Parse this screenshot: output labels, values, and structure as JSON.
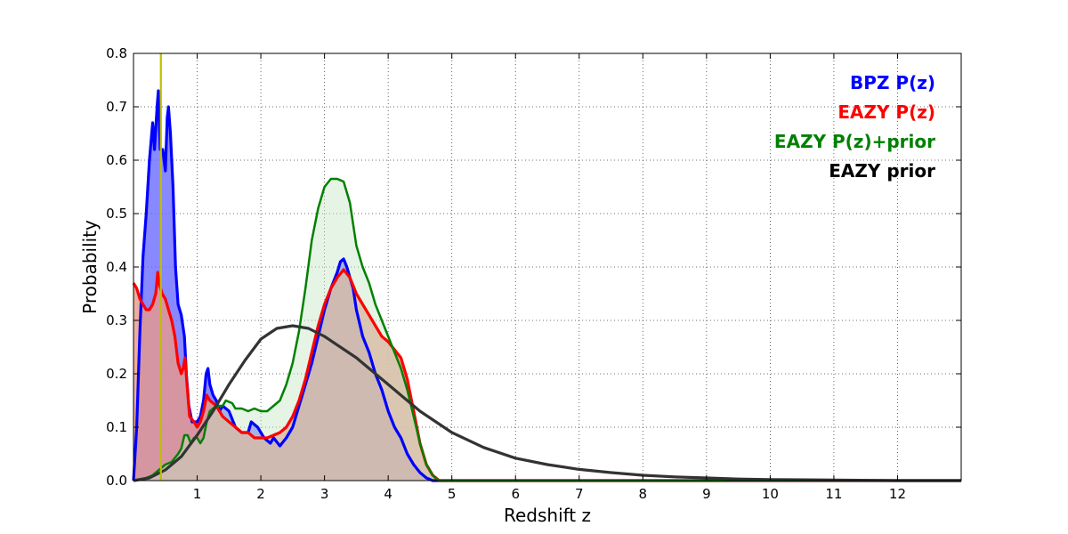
{
  "chart_data": {
    "type": "line",
    "title": "",
    "xlabel": "Redshift z",
    "ylabel": "Probability",
    "xlim": [
      0,
      13
    ],
    "ylim": [
      0,
      0.8
    ],
    "xticks": [
      1,
      2,
      3,
      4,
      5,
      6,
      7,
      8,
      9,
      10,
      11,
      12
    ],
    "yticks": [
      0.0,
      0.1,
      0.2,
      0.3,
      0.4,
      0.5,
      0.6,
      0.7,
      0.8
    ],
    "grid": true,
    "legend_position": "top-right",
    "vertical_line": {
      "x": 0.43,
      "color": "#bfbf00"
    },
    "series": [
      {
        "name": "BPZ P(z)",
        "color": "#0000ff",
        "fill": "#6b6bff",
        "points": [
          [
            0.0,
            0.0
          ],
          [
            0.05,
            0.1
          ],
          [
            0.1,
            0.28
          ],
          [
            0.15,
            0.42
          ],
          [
            0.2,
            0.5
          ],
          [
            0.25,
            0.6
          ],
          [
            0.3,
            0.67
          ],
          [
            0.33,
            0.62
          ],
          [
            0.37,
            0.7
          ],
          [
            0.39,
            0.73
          ],
          [
            0.42,
            0.62
          ],
          [
            0.46,
            0.62
          ],
          [
            0.5,
            0.58
          ],
          [
            0.53,
            0.68
          ],
          [
            0.55,
            0.7
          ],
          [
            0.58,
            0.65
          ],
          [
            0.62,
            0.55
          ],
          [
            0.66,
            0.4
          ],
          [
            0.7,
            0.33
          ],
          [
            0.75,
            0.31
          ],
          [
            0.8,
            0.27
          ],
          [
            0.83,
            0.2
          ],
          [
            0.87,
            0.14
          ],
          [
            0.92,
            0.11
          ],
          [
            1.0,
            0.11
          ],
          [
            1.05,
            0.12
          ],
          [
            1.1,
            0.15
          ],
          [
            1.14,
            0.2
          ],
          [
            1.17,
            0.21
          ],
          [
            1.2,
            0.18
          ],
          [
            1.25,
            0.16
          ],
          [
            1.3,
            0.15
          ],
          [
            1.35,
            0.13
          ],
          [
            1.4,
            0.14
          ],
          [
            1.5,
            0.13
          ],
          [
            1.6,
            0.1
          ],
          [
            1.7,
            0.09
          ],
          [
            1.8,
            0.09
          ],
          [
            1.85,
            0.11
          ],
          [
            1.95,
            0.1
          ],
          [
            2.05,
            0.08
          ],
          [
            2.15,
            0.07
          ],
          [
            2.2,
            0.08
          ],
          [
            2.3,
            0.065
          ],
          [
            2.4,
            0.08
          ],
          [
            2.5,
            0.1
          ],
          [
            2.6,
            0.14
          ],
          [
            2.7,
            0.18
          ],
          [
            2.8,
            0.22
          ],
          [
            2.9,
            0.27
          ],
          [
            3.0,
            0.32
          ],
          [
            3.1,
            0.36
          ],
          [
            3.2,
            0.39
          ],
          [
            3.25,
            0.41
          ],
          [
            3.3,
            0.415
          ],
          [
            3.35,
            0.4
          ],
          [
            3.4,
            0.38
          ],
          [
            3.45,
            0.36
          ],
          [
            3.5,
            0.32
          ],
          [
            3.6,
            0.27
          ],
          [
            3.7,
            0.24
          ],
          [
            3.8,
            0.2
          ],
          [
            3.9,
            0.17
          ],
          [
            4.0,
            0.13
          ],
          [
            4.1,
            0.1
          ],
          [
            4.2,
            0.08
          ],
          [
            4.3,
            0.05
          ],
          [
            4.4,
            0.03
          ],
          [
            4.5,
            0.015
          ],
          [
            4.6,
            0.005
          ],
          [
            4.7,
            0.0
          ],
          [
            5.0,
            0.0
          ],
          [
            12.0,
            0.0
          ],
          [
            13.0,
            0.0
          ]
        ]
      },
      {
        "name": "EAZY P(z)",
        "color": "#ff0000",
        "fill": "#e8998a",
        "points": [
          [
            0.0,
            0.37
          ],
          [
            0.05,
            0.36
          ],
          [
            0.1,
            0.34
          ],
          [
            0.15,
            0.33
          ],
          [
            0.2,
            0.32
          ],
          [
            0.25,
            0.32
          ],
          [
            0.3,
            0.33
          ],
          [
            0.35,
            0.35
          ],
          [
            0.38,
            0.39
          ],
          [
            0.4,
            0.37
          ],
          [
            0.45,
            0.35
          ],
          [
            0.5,
            0.34
          ],
          [
            0.55,
            0.32
          ],
          [
            0.6,
            0.3
          ],
          [
            0.65,
            0.27
          ],
          [
            0.7,
            0.22
          ],
          [
            0.75,
            0.2
          ],
          [
            0.78,
            0.21
          ],
          [
            0.81,
            0.23
          ],
          [
            0.84,
            0.18
          ],
          [
            0.88,
            0.12
          ],
          [
            0.95,
            0.11
          ],
          [
            1.0,
            0.1
          ],
          [
            1.05,
            0.11
          ],
          [
            1.1,
            0.13
          ],
          [
            1.15,
            0.16
          ],
          [
            1.2,
            0.15
          ],
          [
            1.3,
            0.14
          ],
          [
            1.4,
            0.12
          ],
          [
            1.5,
            0.11
          ],
          [
            1.6,
            0.1
          ],
          [
            1.7,
            0.09
          ],
          [
            1.8,
            0.09
          ],
          [
            1.9,
            0.08
          ],
          [
            2.0,
            0.08
          ],
          [
            2.1,
            0.08
          ],
          [
            2.2,
            0.085
          ],
          [
            2.3,
            0.09
          ],
          [
            2.4,
            0.1
          ],
          [
            2.5,
            0.12
          ],
          [
            2.6,
            0.15
          ],
          [
            2.7,
            0.19
          ],
          [
            2.8,
            0.24
          ],
          [
            2.9,
            0.29
          ],
          [
            3.0,
            0.33
          ],
          [
            3.1,
            0.36
          ],
          [
            3.2,
            0.38
          ],
          [
            3.3,
            0.395
          ],
          [
            3.4,
            0.38
          ],
          [
            3.5,
            0.35
          ],
          [
            3.6,
            0.33
          ],
          [
            3.7,
            0.31
          ],
          [
            3.8,
            0.29
          ],
          [
            3.9,
            0.27
          ],
          [
            4.0,
            0.26
          ],
          [
            4.1,
            0.245
          ],
          [
            4.2,
            0.23
          ],
          [
            4.3,
            0.19
          ],
          [
            4.4,
            0.13
          ],
          [
            4.5,
            0.07
          ],
          [
            4.6,
            0.03
          ],
          [
            4.7,
            0.01
          ],
          [
            4.8,
            0.0
          ],
          [
            5.0,
            0.0
          ],
          [
            12.0,
            0.0
          ],
          [
            13.0,
            0.0
          ]
        ]
      },
      {
        "name": "EAZY P(z)+prior",
        "color": "#008000",
        "fill": "#c6e6c6",
        "points": [
          [
            0.0,
            0.0
          ],
          [
            0.2,
            0.005
          ],
          [
            0.3,
            0.01
          ],
          [
            0.4,
            0.02
          ],
          [
            0.5,
            0.03
          ],
          [
            0.6,
            0.035
          ],
          [
            0.7,
            0.05
          ],
          [
            0.75,
            0.06
          ],
          [
            0.8,
            0.085
          ],
          [
            0.85,
            0.085
          ],
          [
            0.9,
            0.07
          ],
          [
            0.95,
            0.08
          ],
          [
            1.0,
            0.08
          ],
          [
            1.05,
            0.07
          ],
          [
            1.1,
            0.08
          ],
          [
            1.15,
            0.11
          ],
          [
            1.2,
            0.13
          ],
          [
            1.3,
            0.14
          ],
          [
            1.4,
            0.14
          ],
          [
            1.45,
            0.15
          ],
          [
            1.55,
            0.145
          ],
          [
            1.6,
            0.135
          ],
          [
            1.7,
            0.135
          ],
          [
            1.8,
            0.13
          ],
          [
            1.9,
            0.135
          ],
          [
            2.0,
            0.13
          ],
          [
            2.1,
            0.13
          ],
          [
            2.2,
            0.14
          ],
          [
            2.3,
            0.15
          ],
          [
            2.4,
            0.18
          ],
          [
            2.5,
            0.22
          ],
          [
            2.6,
            0.28
          ],
          [
            2.7,
            0.36
          ],
          [
            2.8,
            0.45
          ],
          [
            2.9,
            0.51
          ],
          [
            3.0,
            0.55
          ],
          [
            3.1,
            0.565
          ],
          [
            3.2,
            0.565
          ],
          [
            3.3,
            0.56
          ],
          [
            3.4,
            0.52
          ],
          [
            3.5,
            0.44
          ],
          [
            3.6,
            0.4
          ],
          [
            3.7,
            0.37
          ],
          [
            3.8,
            0.33
          ],
          [
            3.9,
            0.3
          ],
          [
            4.0,
            0.27
          ],
          [
            4.1,
            0.24
          ],
          [
            4.2,
            0.21
          ],
          [
            4.3,
            0.17
          ],
          [
            4.4,
            0.12
          ],
          [
            4.5,
            0.07
          ],
          [
            4.6,
            0.03
          ],
          [
            4.7,
            0.01
          ],
          [
            4.8,
            0.0
          ],
          [
            5.0,
            0.0
          ],
          [
            12.0,
            0.0
          ],
          [
            13.0,
            0.0
          ]
        ]
      },
      {
        "name": "EAZY prior",
        "color": "#333333",
        "fill": "none",
        "points": [
          [
            0.0,
            0.0
          ],
          [
            0.25,
            0.005
          ],
          [
            0.5,
            0.02
          ],
          [
            0.75,
            0.045
          ],
          [
            1.0,
            0.085
          ],
          [
            1.25,
            0.13
          ],
          [
            1.5,
            0.18
          ],
          [
            1.75,
            0.225
          ],
          [
            2.0,
            0.265
          ],
          [
            2.25,
            0.285
          ],
          [
            2.5,
            0.29
          ],
          [
            2.75,
            0.285
          ],
          [
            3.0,
            0.27
          ],
          [
            3.25,
            0.25
          ],
          [
            3.5,
            0.23
          ],
          [
            3.75,
            0.205
          ],
          [
            4.0,
            0.18
          ],
          [
            4.25,
            0.155
          ],
          [
            4.5,
            0.13
          ],
          [
            4.75,
            0.11
          ],
          [
            5.0,
            0.09
          ],
          [
            5.5,
            0.062
          ],
          [
            6.0,
            0.042
          ],
          [
            6.5,
            0.03
          ],
          [
            7.0,
            0.021
          ],
          [
            7.5,
            0.015
          ],
          [
            8.0,
            0.01
          ],
          [
            8.5,
            0.007
          ],
          [
            9.0,
            0.005
          ],
          [
            9.5,
            0.003
          ],
          [
            10.0,
            0.002
          ],
          [
            11.0,
            0.001
          ],
          [
            12.0,
            0.0
          ],
          [
            13.0,
            0.0
          ]
        ]
      }
    ]
  }
}
